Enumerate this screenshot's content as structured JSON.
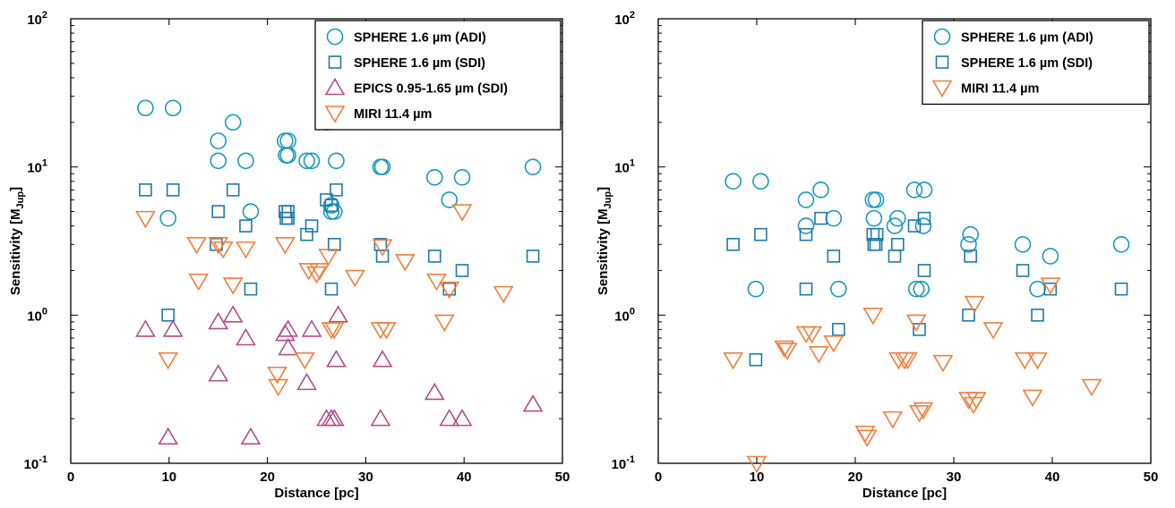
{
  "chart_data": [
    {
      "type": "scatter",
      "title": "",
      "xlabel": "Distance [pc]",
      "ylabel": "Sensitivity [M",
      "ylabel_sub": "Jup",
      "ylabel_end": "]",
      "xlim": [
        0,
        50
      ],
      "ylim": [
        0.1,
        100
      ],
      "yscale": "log",
      "xticks": [
        "0",
        "10",
        "20",
        "30",
        "40",
        "50"
      ],
      "yticks": [
        {
          "base": "10",
          "exp": "-1"
        },
        {
          "base": "10",
          "exp": "0"
        },
        {
          "base": "10",
          "exp": "1"
        },
        {
          "base": "10",
          "exp": "2"
        }
      ],
      "grid": false,
      "legend_position": "top-right",
      "series": [
        {
          "name": "SPHERE 1.6 µm (ADI)",
          "marker": "circle",
          "color": "#1a9abc",
          "points": [
            [
              7.6,
              25
            ],
            [
              10.4,
              25
            ],
            [
              15,
              15
            ],
            [
              15,
              11
            ],
            [
              16.5,
              20
            ],
            [
              17.8,
              11
            ],
            [
              18.3,
              5
            ],
            [
              9.9,
              4.5
            ],
            [
              21.8,
              15
            ],
            [
              22.1,
              15
            ],
            [
              21.9,
              12
            ],
            [
              22.1,
              12
            ],
            [
              24,
              11
            ],
            [
              24.5,
              11
            ],
            [
              26,
              20
            ],
            [
              27,
              11
            ],
            [
              26.5,
              5.5
            ],
            [
              26.5,
              5
            ],
            [
              26.8,
              5
            ],
            [
              31.5,
              10
            ],
            [
              31.7,
              10
            ],
            [
              37,
              8.5
            ],
            [
              38.5,
              6
            ],
            [
              39.8,
              8.5
            ],
            [
              47,
              10
            ]
          ]
        },
        {
          "name": "SPHERE 1.6 µm (SDI)",
          "marker": "square",
          "color": "#1f7aa8",
          "points": [
            [
              7.6,
              7
            ],
            [
              10.4,
              7
            ],
            [
              15,
              5
            ],
            [
              16.5,
              7
            ],
            [
              17.8,
              4
            ],
            [
              14.8,
              3
            ],
            [
              18.3,
              1.5
            ],
            [
              9.9,
              1
            ],
            [
              21.8,
              5
            ],
            [
              22.1,
              5
            ],
            [
              21.9,
              4.5
            ],
            [
              22.1,
              4.5
            ],
            [
              24,
              3.5
            ],
            [
              24.5,
              4
            ],
            [
              26,
              6
            ],
            [
              27,
              7
            ],
            [
              26.5,
              5.5
            ],
            [
              26.8,
              3
            ],
            [
              26.5,
              1.5
            ],
            [
              31.5,
              3
            ],
            [
              31.7,
              2.5
            ],
            [
              37,
              2.5
            ],
            [
              38.5,
              1.5
            ],
            [
              39.8,
              2
            ],
            [
              47,
              2.5
            ]
          ]
        },
        {
          "name": "EPICS 0.95-1.65 µm (SDI)",
          "marker": "triangle-up",
          "color": "#b34d8b",
          "points": [
            [
              7.6,
              0.8
            ],
            [
              10.4,
              0.8
            ],
            [
              9.9,
              0.15
            ],
            [
              15,
              0.9
            ],
            [
              15,
              0.4
            ],
            [
              16.5,
              1
            ],
            [
              17.8,
              0.7
            ],
            [
              18.3,
              0.15
            ],
            [
              21.8,
              0.75
            ],
            [
              22.1,
              0.8
            ],
            [
              22.1,
              0.6
            ],
            [
              24,
              0.35
            ],
            [
              24.5,
              0.8
            ],
            [
              26,
              0.2
            ],
            [
              26.5,
              0.2
            ],
            [
              26.8,
              0.2
            ],
            [
              27,
              0.5
            ],
            [
              27.2,
              1
            ],
            [
              31.5,
              0.2
            ],
            [
              31.7,
              0.5
            ],
            [
              37,
              0.3
            ],
            [
              38.5,
              0.2
            ],
            [
              39.8,
              0.2
            ],
            [
              47,
              0.25
            ]
          ]
        },
        {
          "name": "MIRI 11.4 µm",
          "marker": "triangle-down",
          "color": "#f07f3c",
          "points": [
            [
              7.6,
              4.5
            ],
            [
              9.9,
              0.5
            ],
            [
              12.8,
              3
            ],
            [
              13,
              1.7
            ],
            [
              15,
              3
            ],
            [
              15.5,
              2.8
            ],
            [
              16.5,
              1.6
            ],
            [
              17.8,
              2.8
            ],
            [
              21,
              0.4
            ],
            [
              21.1,
              0.33
            ],
            [
              21.8,
              3
            ],
            [
              23.8,
              0.5
            ],
            [
              24.2,
              2
            ],
            [
              25,
              1.9
            ],
            [
              25.3,
              2
            ],
            [
              26.2,
              2.5
            ],
            [
              26.5,
              0.8
            ],
            [
              26.8,
              0.8
            ],
            [
              28.9,
              1.8
            ],
            [
              31.5,
              0.8
            ],
            [
              31.7,
              2.9
            ],
            [
              32.1,
              0.8
            ],
            [
              34,
              2.3
            ],
            [
              37.2,
              1.7
            ],
            [
              38,
              0.9
            ],
            [
              38.5,
              1.5
            ],
            [
              39.8,
              5
            ],
            [
              44,
              1.4
            ]
          ]
        }
      ]
    },
    {
      "type": "scatter",
      "title": "",
      "xlabel": "Distance [pc]",
      "ylabel": "Sensitivity [M",
      "ylabel_sub": "Jup",
      "ylabel_end": "]",
      "xlim": [
        0,
        50
      ],
      "ylim": [
        0.1,
        100
      ],
      "yscale": "log",
      "xticks": [
        "0",
        "10",
        "20",
        "30",
        "40",
        "50"
      ],
      "yticks": [
        {
          "base": "10",
          "exp": "-1"
        },
        {
          "base": "10",
          "exp": "0"
        },
        {
          "base": "10",
          "exp": "1"
        },
        {
          "base": "10",
          "exp": "2"
        }
      ],
      "grid": false,
      "legend_position": "top-right",
      "series": [
        {
          "name": "SPHERE 1.6 µm (ADI)",
          "marker": "circle",
          "color": "#1a9abc",
          "points": [
            [
              7.6,
              8
            ],
            [
              10.4,
              8
            ],
            [
              9.9,
              1.5
            ],
            [
              15,
              6
            ],
            [
              15,
              4
            ],
            [
              16.5,
              7
            ],
            [
              17.8,
              4.5
            ],
            [
              18.3,
              1.5
            ],
            [
              21.8,
              6
            ],
            [
              22.1,
              6
            ],
            [
              21.9,
              4.5
            ],
            [
              24,
              4
            ],
            [
              24.3,
              4.5
            ],
            [
              26,
              7
            ],
            [
              27,
              7
            ],
            [
              26.9,
              4
            ],
            [
              26.2,
              1.5
            ],
            [
              26.7,
              1.5
            ],
            [
              31.5,
              3
            ],
            [
              31.7,
              3.5
            ],
            [
              37,
              3
            ],
            [
              38.5,
              1.5
            ],
            [
              39.8,
              2.5
            ],
            [
              47,
              3
            ]
          ]
        },
        {
          "name": "SPHERE 1.6 µm (SDI)",
          "marker": "square",
          "color": "#1f7aa8",
          "points": [
            [
              7.6,
              3
            ],
            [
              10.4,
              3.5
            ],
            [
              9.9,
              0.5
            ],
            [
              15,
              3.5
            ],
            [
              15,
              1.5
            ],
            [
              16.5,
              4.5
            ],
            [
              17.8,
              2.5
            ],
            [
              18.3,
              0.8
            ],
            [
              21.8,
              3.5
            ],
            [
              22.1,
              3
            ],
            [
              22.2,
              3.5
            ],
            [
              21.9,
              3
            ],
            [
              24,
              2.5
            ],
            [
              24.3,
              3
            ],
            [
              26,
              4
            ],
            [
              27,
              4.5
            ],
            [
              27,
              2
            ],
            [
              26.5,
              0.8
            ],
            [
              31.5,
              1
            ],
            [
              31.7,
              2.5
            ],
            [
              37,
              2
            ],
            [
              38.5,
              1
            ],
            [
              39.8,
              1.5
            ],
            [
              47,
              1.5
            ]
          ]
        },
        {
          "name": "MIRI 11.4 µm",
          "marker": "triangle-down",
          "color": "#f07f3c",
          "points": [
            [
              7.6,
              0.5
            ],
            [
              10,
              0.1
            ],
            [
              12.8,
              0.6
            ],
            [
              13.1,
              0.58
            ],
            [
              15,
              0.75
            ],
            [
              15.6,
              0.75
            ],
            [
              16.3,
              0.55
            ],
            [
              17.8,
              0.65
            ],
            [
              21,
              0.16
            ],
            [
              21.2,
              0.15
            ],
            [
              21.8,
              1
            ],
            [
              23.8,
              0.2
            ],
            [
              24.4,
              0.5
            ],
            [
              25,
              0.5
            ],
            [
              25.3,
              0.5
            ],
            [
              26.2,
              0.9
            ],
            [
              26.5,
              0.22
            ],
            [
              26.9,
              0.23
            ],
            [
              28.9,
              0.48
            ],
            [
              31.5,
              0.27
            ],
            [
              32,
              0.25
            ],
            [
              32.1,
              1.2
            ],
            [
              32.3,
              0.27
            ],
            [
              34,
              0.8
            ],
            [
              37.2,
              0.5
            ],
            [
              38,
              0.28
            ],
            [
              38.5,
              0.5
            ],
            [
              39.8,
              1.6
            ],
            [
              44,
              0.33
            ]
          ]
        }
      ]
    }
  ]
}
